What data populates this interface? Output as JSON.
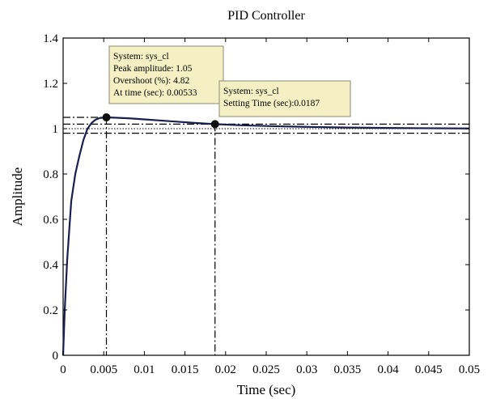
{
  "chart_data": {
    "type": "line",
    "title": "PID Controller",
    "xlabel": "Time (sec)",
    "ylabel": "Amplitude",
    "xlim": [
      0,
      0.05
    ],
    "ylim": [
      0,
      1.4
    ],
    "xticks": [
      0,
      0.005,
      0.01,
      0.015,
      0.02,
      0.025,
      0.03,
      0.035,
      0.04,
      0.045,
      0.05
    ],
    "xtick_labels": [
      "0",
      "0.005",
      "0.01",
      "0.015",
      "0.02",
      "0.025",
      "0.03",
      "0.035",
      "0.04",
      "0.045",
      "0.05"
    ],
    "yticks": [
      0,
      0.2,
      0.4,
      0.6,
      0.8,
      1,
      1.2,
      1.4
    ],
    "ytick_labels": [
      "0",
      "0.2",
      "0.4",
      "0.6",
      "0.8",
      "1",
      "1.2",
      "1.4"
    ],
    "grid": false,
    "series": [
      {
        "x": [
          0,
          0.0002,
          0.0005,
          0.001,
          0.0015,
          0.002,
          0.0025,
          0.003,
          0.0035,
          0.004,
          0.0045,
          0.00533,
          0.006,
          0.008,
          0.01,
          0.012,
          0.014,
          0.016,
          0.0187,
          0.022,
          0.026,
          0.03,
          0.035,
          0.04,
          0.045,
          0.05
        ],
        "y": [
          0,
          0.2,
          0.42,
          0.68,
          0.8,
          0.88,
          0.95,
          1.0,
          1.025,
          1.04,
          1.047,
          1.05,
          1.049,
          1.046,
          1.041,
          1.036,
          1.031,
          1.026,
          1.02,
          1.015,
          1.011,
          1.008,
          1.005,
          1.003,
          1.002,
          1.001
        ],
        "color": "#1a1f4e"
      }
    ],
    "settling_band": [
      0.98,
      1.02
    ],
    "reference_level": 1,
    "peak": {
      "x": 0.00533,
      "y": 1.05
    },
    "settling": {
      "x": 0.0187,
      "y": 1.02
    },
    "annotations": [
      {
        "lines": [
          "System: sys_cl",
          "Peak amplitude: 1.05",
          "Overshoot (%): 4.82",
          "At time (sec): 0.00533"
        ]
      },
      {
        "lines": [
          "System: sys_cl",
          "Setting Time (sec):0.0187"
        ]
      }
    ]
  },
  "colors": {
    "line": "#1a1f4e",
    "marker": "#0d0d0d",
    "tip_fill": "#f5f0c4",
    "tip_border": "#8a8a70"
  }
}
